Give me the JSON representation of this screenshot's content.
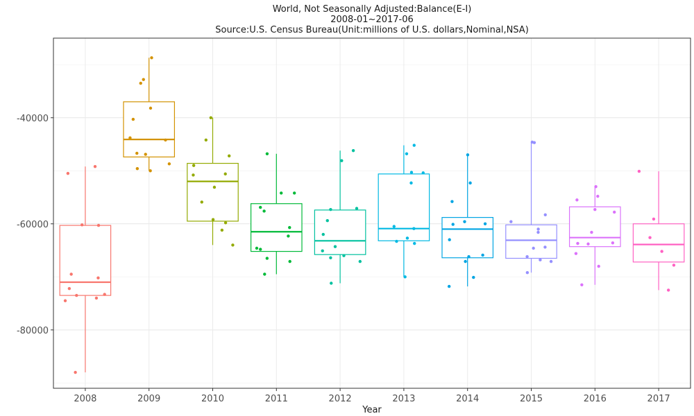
{
  "chart_data": {
    "type": "box",
    "title_lines": [
      "World, Not Seasonally Adjusted:Balance(E-I)",
      "2008-01~2017-06",
      "Source:U.S. Census Bureau(Unit:millions of U.S. dollars,Nominal,NSA)"
    ],
    "xlabel": "Year",
    "ylabel": "",
    "ylim": [
      -91000,
      -25000
    ],
    "yticks": [
      -80000,
      -60000,
      -40000
    ],
    "ytick_labels": [
      "-80000",
      "-60000",
      "-40000"
    ],
    "grid": true,
    "legend": "none",
    "categories": [
      "2008",
      "2009",
      "2010",
      "2011",
      "2012",
      "2013",
      "2014",
      "2015",
      "2016",
      "2017"
    ],
    "colors": [
      "#F8766D",
      "#D39200",
      "#93AA00",
      "#00BA38",
      "#00C19F",
      "#00B9E3",
      "#00A5E3",
      "#9590FF",
      "#DB72FB",
      "#FF61C3"
    ],
    "boxes": [
      {
        "year": "2008",
        "min": -88000,
        "q1": -73500,
        "median": -71000,
        "q3": -60300,
        "max": -49200
      },
      {
        "year": "2009",
        "min": -50000,
        "q1": -47400,
        "median": -44100,
        "q3": -37000,
        "max": -28700
      },
      {
        "year": "2010",
        "min": -64000,
        "q1": -59500,
        "median": -52000,
        "q3": -48600,
        "max": -40000
      },
      {
        "year": "2011",
        "min": -69500,
        "q1": -65200,
        "median": -61500,
        "q3": -56200,
        "max": -46800
      },
      {
        "year": "2012",
        "min": -71200,
        "q1": -65800,
        "median": -63200,
        "q3": -57400,
        "max": -46200
      },
      {
        "year": "2013",
        "min": -70000,
        "q1": -63200,
        "median": -60900,
        "q3": -50600,
        "max": -45200
      },
      {
        "year": "2014",
        "min": -71800,
        "q1": -66400,
        "median": -61000,
        "q3": -58800,
        "max": -47000
      },
      {
        "year": "2015",
        "min": -69200,
        "q1": -66500,
        "median": -63100,
        "q3": -60200,
        "max": -44600
      },
      {
        "year": "2016",
        "min": -71500,
        "q1": -64300,
        "median": -62600,
        "q3": -56800,
        "max": -53000
      },
      {
        "year": "2017",
        "min": -72500,
        "q1": -67200,
        "median": -63900,
        "q3": -60000,
        "max": -50100
      }
    ],
    "points": [
      {
        "year": "2008",
        "values": [
          -49200,
          -50500,
          -60200,
          -60300,
          -69500,
          -70200,
          -72200,
          -73300,
          -73500,
          -74000,
          -74500,
          -88000
        ]
      },
      {
        "year": "2009",
        "values": [
          -28700,
          -32800,
          -33500,
          -38200,
          -40300,
          -43800,
          -44200,
          -46700,
          -46900,
          -48700,
          -49600,
          -50000
        ]
      },
      {
        "year": "2010",
        "values": [
          -40000,
          -44200,
          -47200,
          -49000,
          -50600,
          -50800,
          -53100,
          -55900,
          -59200,
          -59800,
          -61200,
          -64000
        ]
      },
      {
        "year": "2011",
        "values": [
          -46800,
          -54200,
          -54200,
          -56900,
          -57600,
          -60700,
          -62300,
          -64600,
          -64800,
          -66500,
          -67100,
          -69500
        ]
      },
      {
        "year": "2012",
        "values": [
          -46200,
          -48100,
          -57100,
          -57300,
          -59400,
          -62000,
          -64300,
          -65100,
          -66000,
          -66400,
          -67100,
          -71200
        ]
      },
      {
        "year": "2013",
        "values": [
          -45200,
          -46800,
          -50300,
          -50400,
          -52300,
          -60500,
          -60900,
          -62700,
          -63300,
          -63700,
          -70000
        ]
      },
      {
        "year": "2014",
        "values": [
          -47000,
          -52300,
          -55800,
          -59600,
          -60000,
          -60100,
          -63000,
          -65900,
          -66200,
          -67100,
          -70100,
          -71800
        ]
      },
      {
        "year": "2015",
        "values": [
          -44600,
          -44700,
          -58300,
          -59600,
          -61000,
          -61600,
          -64400,
          -64600,
          -66200,
          -66800,
          -67100,
          -69200
        ]
      },
      {
        "year": "2016",
        "values": [
          -53000,
          -54800,
          -55500,
          -57300,
          -57800,
          -61600,
          -63600,
          -63700,
          -63800,
          -65600,
          -68000,
          -71500
        ]
      },
      {
        "year": "2017",
        "values": [
          -50100,
          -59100,
          -62600,
          -65200,
          -67800,
          -72500
        ]
      }
    ]
  }
}
